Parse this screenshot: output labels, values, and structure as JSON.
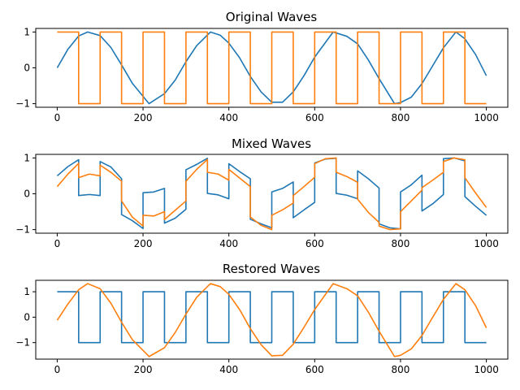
{
  "chart_data": [
    {
      "type": "line",
      "title": "Original Waves",
      "xlabel": "",
      "ylabel": "",
      "xlim": [
        -50,
        1050
      ],
      "ylim": [
        -1.1,
        1.1
      ],
      "xticks": [
        0,
        200,
        400,
        600,
        800,
        1000
      ],
      "yticks": [
        -1,
        0,
        1
      ],
      "xtick_labels": [
        "0",
        "200",
        "400",
        "600",
        "800",
        "1000"
      ],
      "ytick_labels": [
        "−1",
        "0",
        "1"
      ],
      "grid": false,
      "series": [
        {
          "color": "#1f77b4",
          "x": [
            0,
            25,
            50,
            71,
            100,
            125,
            150,
            175,
            214,
            250,
            275,
            300,
            325,
            357,
            380,
            400,
            425,
            450,
            475,
            500,
            525,
            550,
            575,
            600,
            643,
            675,
            700,
            725,
            750,
            786,
            800,
            825,
            850,
            875,
            900,
            929,
            950,
            975,
            1000
          ],
          "y": [
            0.0,
            0.52,
            0.89,
            1.0,
            0.9,
            0.57,
            0.08,
            -0.43,
            -1.0,
            -0.72,
            -0.34,
            0.17,
            0.62,
            1.0,
            0.91,
            0.69,
            0.28,
            -0.24,
            -0.67,
            -0.96,
            -0.96,
            -0.67,
            -0.22,
            0.3,
            1.0,
            0.88,
            0.67,
            0.22,
            -0.3,
            -1.0,
            -0.97,
            -0.82,
            -0.44,
            0.06,
            0.56,
            1.0,
            0.81,
            0.37,
            -0.22
          ]
        },
        {
          "color": "#ff7f0e",
          "x": [
            0,
            50,
            50,
            100,
            100,
            150,
            150,
            200,
            200,
            250,
            250,
            300,
            300,
            350,
            350,
            400,
            400,
            450,
            450,
            500,
            500,
            550,
            550,
            600,
            600,
            650,
            650,
            700,
            700,
            750,
            750,
            800,
            800,
            850,
            850,
            900,
            900,
            950,
            950,
            1000
          ],
          "y": [
            1,
            1,
            -1,
            -1,
            1,
            1,
            -1,
            -1,
            1,
            1,
            -1,
            -1,
            1,
            1,
            -1,
            -1,
            1,
            1,
            -1,
            -1,
            1,
            1,
            -1,
            -1,
            1,
            1,
            -1,
            -1,
            1,
            1,
            -1,
            -1,
            1,
            1,
            -1,
            -1,
            1,
            1,
            -1,
            -1
          ]
        }
      ]
    },
    {
      "type": "line",
      "title": "Mixed Waves",
      "xlabel": "",
      "ylabel": "",
      "xlim": [
        -50,
        1050
      ],
      "ylim": [
        -1.1,
        1.1
      ],
      "xticks": [
        0,
        200,
        400,
        600,
        800,
        1000
      ],
      "yticks": [
        -1,
        0,
        1
      ],
      "xtick_labels": [
        "0",
        "200",
        "400",
        "600",
        "800",
        "1000"
      ],
      "ytick_labels": [
        "−1",
        "0",
        "1"
      ],
      "grid": false,
      "series": [
        {
          "color": "#1f77b4",
          "x": [
            0,
            25,
            50,
            50,
            75,
            100,
            100,
            125,
            150,
            150,
            175,
            200,
            200,
            225,
            250,
            250,
            275,
            300,
            300,
            325,
            350,
            350,
            375,
            400,
            400,
            425,
            450,
            450,
            475,
            500,
            500,
            525,
            550,
            550,
            575,
            600,
            600,
            625,
            650,
            650,
            675,
            700,
            700,
            725,
            750,
            750,
            775,
            800,
            800,
            825,
            850,
            850,
            875,
            900,
            900,
            925,
            950,
            950,
            975,
            1000
          ],
          "y": [
            0.5,
            0.76,
            0.95,
            -0.05,
            -0.02,
            -0.05,
            0.9,
            0.75,
            0.42,
            -0.58,
            -0.75,
            -0.97,
            0.03,
            0.05,
            0.15,
            -0.82,
            -0.68,
            -0.43,
            0.67,
            0.82,
            0.99,
            0.01,
            -0.03,
            -0.14,
            0.84,
            0.62,
            0.42,
            -0.71,
            -0.84,
            -0.95,
            0.05,
            0.15,
            0.33,
            -0.67,
            -0.45,
            -0.24,
            0.86,
            0.97,
            0.99,
            0.01,
            -0.04,
            -0.14,
            0.64,
            0.42,
            0.16,
            -0.84,
            -0.95,
            -0.98,
            0.05,
            0.25,
            0.52,
            -0.48,
            -0.28,
            -0.02,
            0.98,
            1.0,
            0.92,
            -0.08,
            -0.35,
            -0.6
          ]
        },
        {
          "color": "#ff7f0e",
          "x": [
            0,
            25,
            50,
            50,
            75,
            100,
            100,
            125,
            150,
            150,
            175,
            200,
            200,
            225,
            250,
            250,
            275,
            300,
            300,
            325,
            350,
            350,
            375,
            400,
            400,
            425,
            450,
            450,
            475,
            500,
            500,
            525,
            550,
            550,
            575,
            600,
            600,
            625,
            650,
            650,
            675,
            700,
            700,
            725,
            750,
            750,
            775,
            800,
            800,
            825,
            850,
            850,
            875,
            900,
            900,
            925,
            950,
            950,
            975,
            1000
          ],
          "y": [
            0.2,
            0.55,
            0.85,
            0.45,
            0.55,
            0.5,
            0.8,
            0.6,
            0.35,
            -0.2,
            -0.65,
            -0.9,
            -0.6,
            -0.62,
            -0.5,
            -0.72,
            -0.46,
            -0.2,
            0.35,
            0.68,
            0.96,
            0.6,
            0.55,
            0.38,
            0.68,
            0.44,
            0.2,
            -0.65,
            -0.88,
            -1.0,
            -0.6,
            -0.45,
            -0.26,
            -0.05,
            0.2,
            0.46,
            0.84,
            0.98,
            1.0,
            0.6,
            0.48,
            0.32,
            -0.15,
            -0.52,
            -0.8,
            -0.9,
            -1.0,
            -0.98,
            -0.5,
            -0.2,
            0.1,
            0.17,
            0.38,
            0.6,
            0.9,
            1.0,
            0.95,
            0.45,
            0.02,
            -0.38
          ]
        }
      ]
    },
    {
      "type": "line",
      "title": "Restored Waves",
      "xlabel": "",
      "ylabel": "",
      "xlim": [
        -50,
        1050
      ],
      "ylim": [
        -1.65,
        1.45
      ],
      "xticks": [
        0,
        200,
        400,
        600,
        800,
        1000
      ],
      "yticks": [
        -1,
        0,
        1
      ],
      "xtick_labels": [
        "0",
        "200",
        "400",
        "600",
        "800",
        "1000"
      ],
      "ytick_labels": [
        "−1",
        "0",
        "1"
      ],
      "grid": false,
      "series": [
        {
          "color": "#1f77b4",
          "x": [
            0,
            50,
            50,
            100,
            100,
            150,
            150,
            200,
            200,
            250,
            250,
            300,
            300,
            350,
            350,
            400,
            400,
            450,
            450,
            500,
            500,
            550,
            550,
            600,
            600,
            650,
            650,
            700,
            700,
            750,
            750,
            800,
            800,
            850,
            850,
            900,
            900,
            950,
            950,
            1000
          ],
          "y": [
            1,
            1,
            -1,
            -1,
            1,
            1,
            -1,
            -1,
            1,
            1,
            -1,
            -1,
            1,
            1,
            -1,
            -1,
            1,
            1,
            -1,
            -1,
            1,
            1,
            -1,
            -1,
            1,
            1,
            -1,
            -1,
            1,
            1,
            -1,
            -1,
            1,
            1,
            -1,
            -1,
            1,
            1,
            -1,
            -1
          ]
        },
        {
          "color": "#ff7f0e",
          "x": [
            0,
            25,
            50,
            71,
            100,
            125,
            150,
            175,
            214,
            250,
            275,
            300,
            325,
            357,
            380,
            400,
            425,
            450,
            475,
            500,
            525,
            550,
            575,
            600,
            643,
            675,
            700,
            725,
            750,
            786,
            800,
            825,
            850,
            875,
            900,
            929,
            950,
            975,
            1000
          ],
          "y": [
            -0.12,
            0.52,
            1.08,
            1.32,
            1.12,
            0.55,
            -0.2,
            -0.88,
            -1.55,
            -1.2,
            -0.6,
            0.12,
            0.78,
            1.32,
            1.2,
            0.9,
            0.3,
            -0.45,
            -1.08,
            -1.52,
            -1.5,
            -1.06,
            -0.4,
            0.3,
            1.32,
            1.12,
            0.84,
            0.2,
            -0.55,
            -1.55,
            -1.5,
            -1.25,
            -0.72,
            0.0,
            0.7,
            1.32,
            1.08,
            0.45,
            -0.42
          ]
        }
      ]
    }
  ]
}
